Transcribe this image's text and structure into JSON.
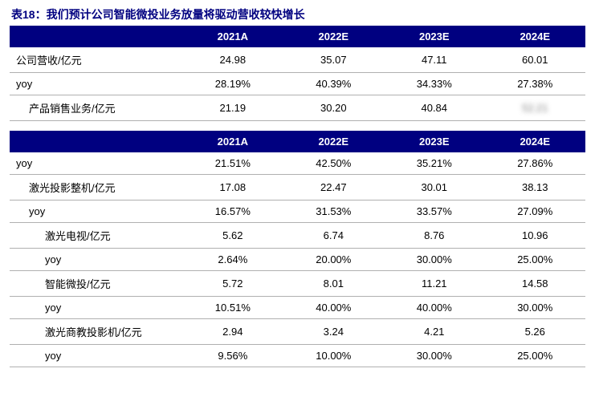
{
  "title": "表18：我们预计公司智能微投业务放量将驱动营收较快增长",
  "colors": {
    "header_bg": "#000080",
    "header_text": "#ffffff",
    "title_color": "#000080",
    "border_color": "#b0b0b0",
    "text_color": "#000000",
    "background": "#ffffff"
  },
  "columns": [
    "2021A",
    "2022E",
    "2023E",
    "2024E"
  ],
  "table1": {
    "rows": [
      {
        "label": "公司营收/亿元",
        "indent": 0,
        "values": [
          "24.98",
          "35.07",
          "47.11",
          "60.01"
        ]
      },
      {
        "label": "yoy",
        "indent": 0,
        "values": [
          "28.19%",
          "40.39%",
          "34.33%",
          "27.38%"
        ]
      },
      {
        "label": "产品销售业务/亿元",
        "indent": 1,
        "values": [
          "21.19",
          "30.20",
          "40.84",
          ""
        ],
        "lastBlur": true
      }
    ]
  },
  "table2": {
    "rows": [
      {
        "label": "yoy",
        "indent": 0,
        "values": [
          "21.51%",
          "42.50%",
          "35.21%",
          "27.86%"
        ]
      },
      {
        "label": "激光投影整机/亿元",
        "indent": 1,
        "values": [
          "17.08",
          "22.47",
          "30.01",
          "38.13"
        ]
      },
      {
        "label": "yoy",
        "indent": 1,
        "values": [
          "16.57%",
          "31.53%",
          "33.57%",
          "27.09%"
        ]
      },
      {
        "label": "激光电视/亿元",
        "indent": 2,
        "values": [
          "5.62",
          "6.74",
          "8.76",
          "10.96"
        ]
      },
      {
        "label": "yoy",
        "indent": 2,
        "values": [
          "2.64%",
          "20.00%",
          "30.00%",
          "25.00%"
        ]
      },
      {
        "label": "智能微投/亿元",
        "indent": 2,
        "values": [
          "5.72",
          "8.01",
          "11.21",
          "14.58"
        ]
      },
      {
        "label": "yoy",
        "indent": 2,
        "values": [
          "10.51%",
          "40.00%",
          "40.00%",
          "30.00%"
        ]
      },
      {
        "label": "激光商教投影机/亿元",
        "indent": 2,
        "values": [
          "2.94",
          "3.24",
          "4.21",
          "5.26"
        ]
      },
      {
        "label": "yoy",
        "indent": 2,
        "values": [
          "9.56%",
          "10.00%",
          "30.00%",
          "25.00%"
        ]
      }
    ]
  }
}
